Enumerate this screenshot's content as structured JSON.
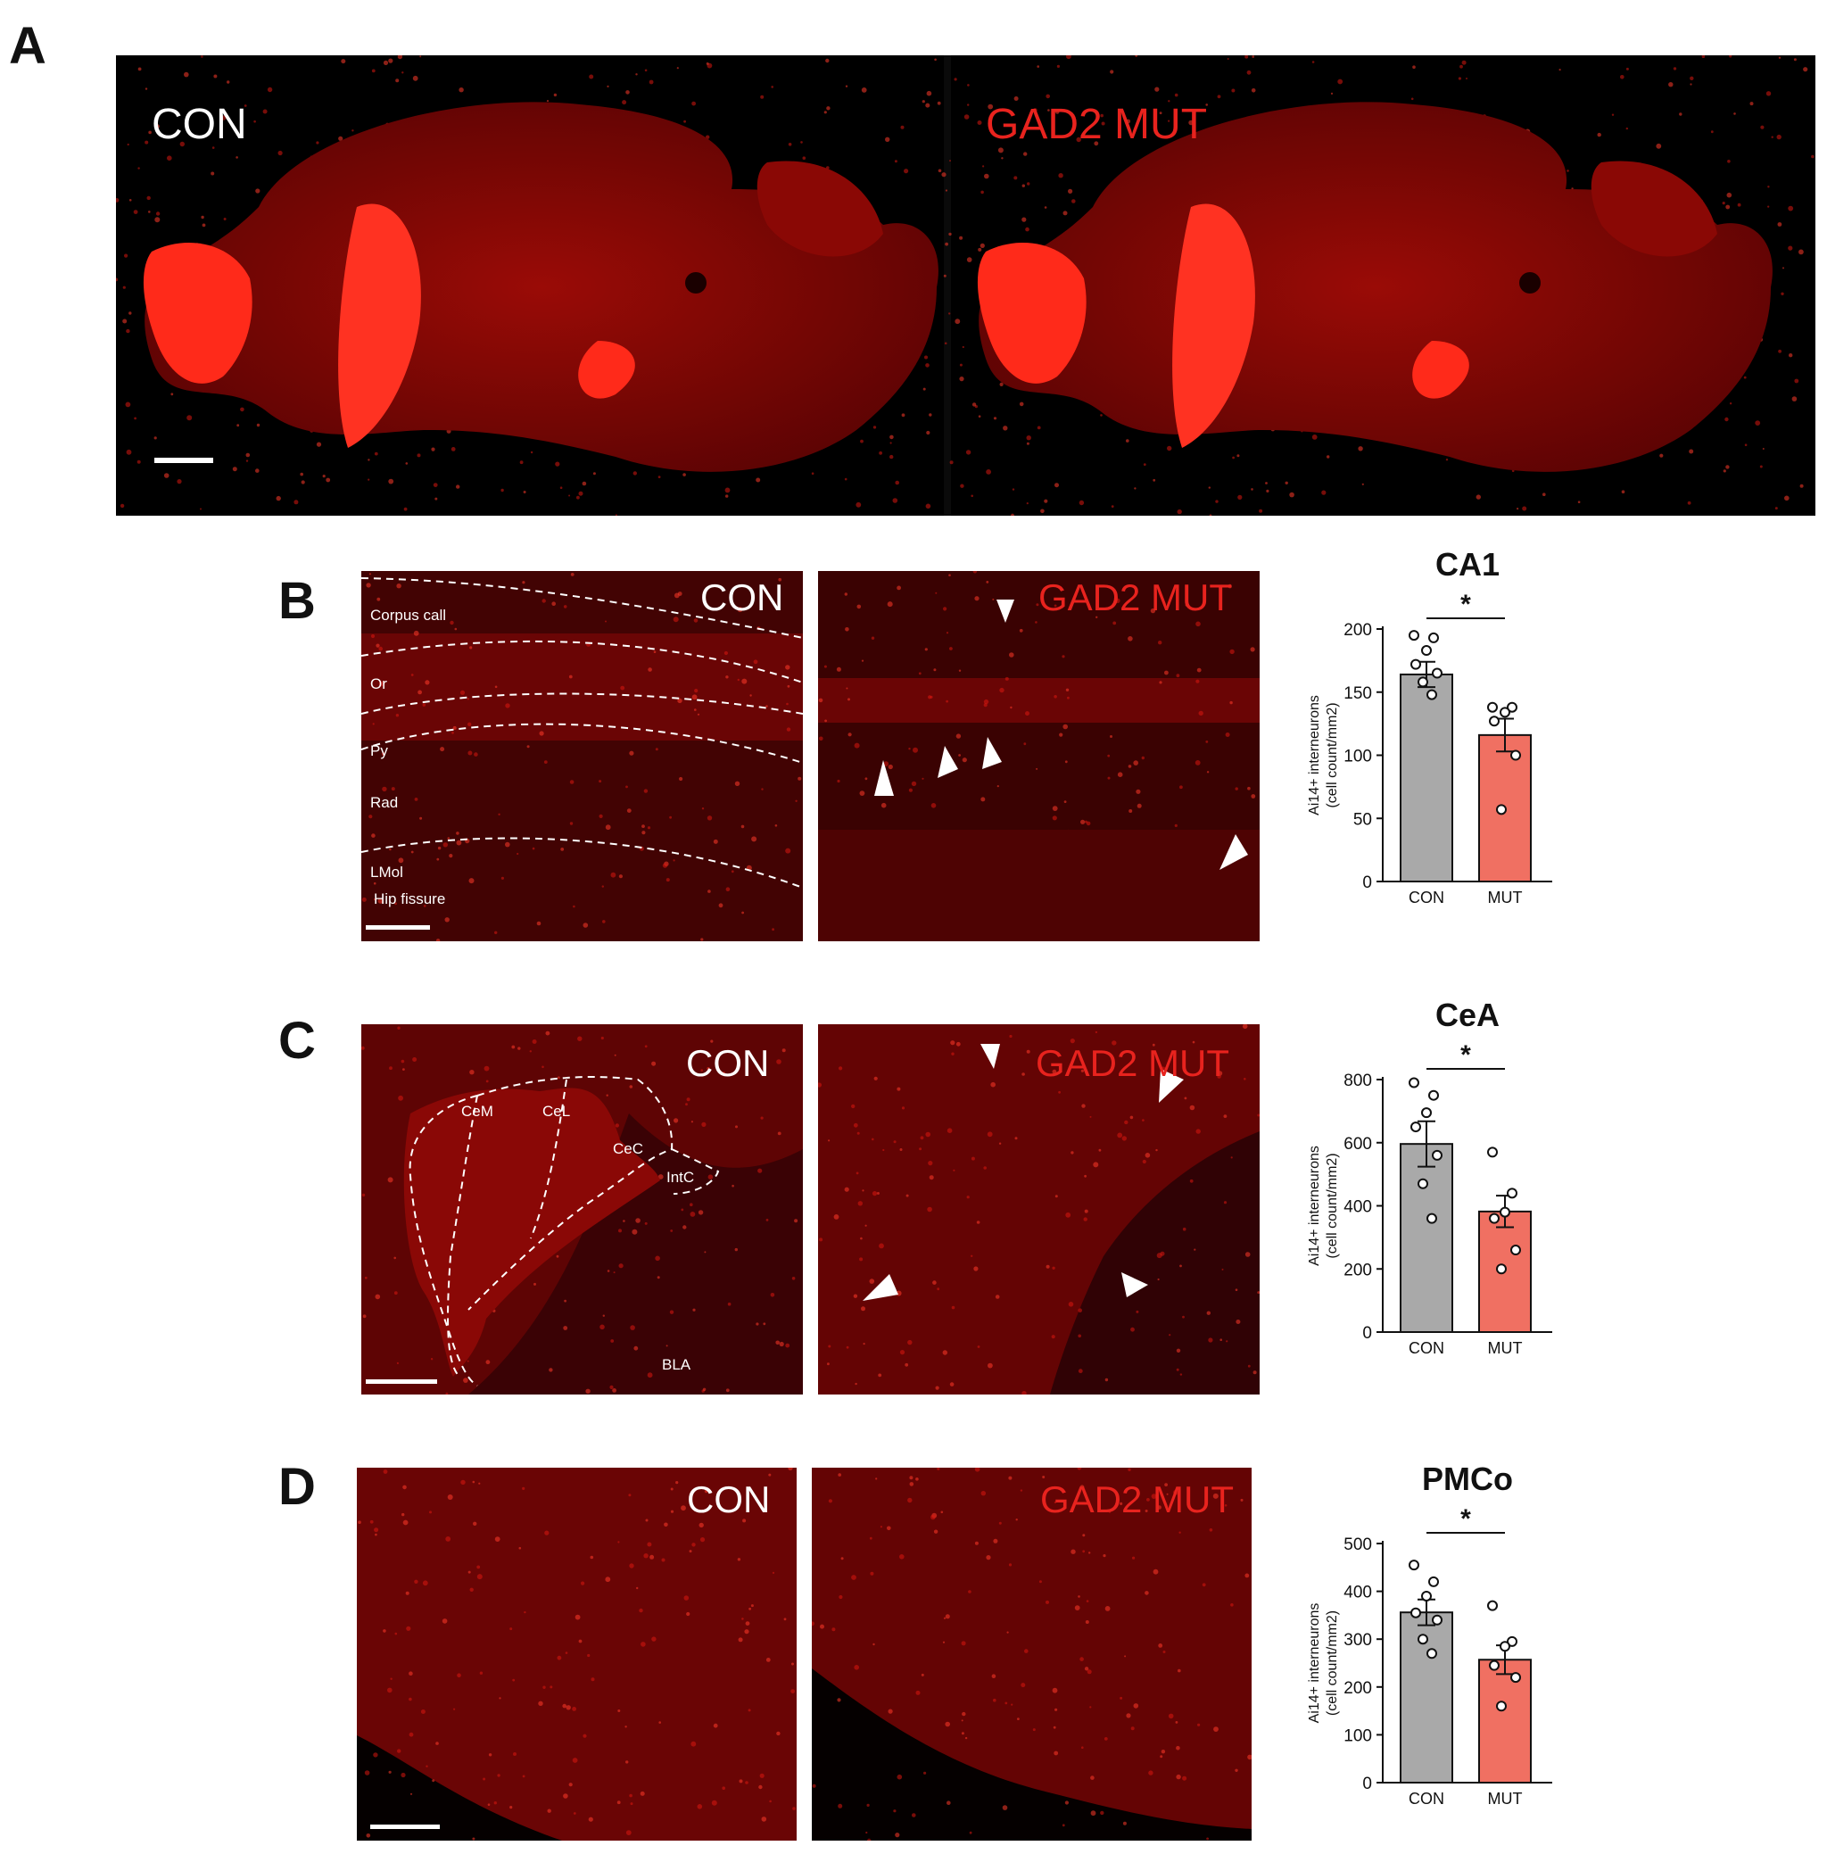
{
  "panels": {
    "A": {
      "letter": "A",
      "con_label": "CON",
      "mut_label": "GAD2 MUT"
    },
    "B": {
      "letter": "B",
      "con_label": "CON",
      "mut_label": "GAD2 MUT",
      "layers": [
        "Corpus call",
        "Or",
        "Py",
        "Rad",
        "LMol",
        "Hip fissure"
      ]
    },
    "C": {
      "letter": "C",
      "con_label": "CON",
      "mut_label": "GAD2 MUT",
      "regions": [
        "CeM",
        "CeL",
        "CeC",
        "IntC",
        "BLA"
      ]
    },
    "D": {
      "letter": "D",
      "con_label": "CON",
      "mut_label": "GAD2 MUT"
    }
  },
  "colors": {
    "con_bar": "#a9a9a9",
    "mut_bar": "#f07062",
    "mut_text": "#e8231e",
    "tissue": "#b00000"
  },
  "chart_data": [
    {
      "type": "bar",
      "title": "CA1",
      "categories": [
        "CON",
        "MUT"
      ],
      "values": [
        164,
        116
      ],
      "errors": [
        10,
        13
      ],
      "points": [
        [
          195,
          193,
          183,
          172,
          165,
          158,
          148
        ],
        [
          138,
          138,
          134,
          127,
          100,
          57
        ]
      ],
      "ylabel_line1": "Ai14+ interneurons",
      "ylabel_line2": "(cell count/mm2)",
      "ylim": [
        0,
        200
      ],
      "yticks": [
        0,
        50,
        100,
        150,
        200
      ],
      "significance": "*"
    },
    {
      "type": "bar",
      "title": "CeA",
      "categories": [
        "CON",
        "MUT"
      ],
      "values": [
        596,
        382
      ],
      "errors": [
        72,
        50
      ],
      "points": [
        [
          790,
          750,
          695,
          650,
          560,
          470,
          360
        ],
        [
          570,
          440,
          380,
          360,
          260,
          200
        ]
      ],
      "ylabel_line1": "Ai14+ interneurons",
      "ylabel_line2": "(cell count/mm2)",
      "ylim": [
        0,
        800
      ],
      "yticks": [
        0,
        200,
        400,
        600,
        800
      ],
      "significance": "*"
    },
    {
      "type": "bar",
      "title": "PMCo",
      "categories": [
        "CON",
        "MUT"
      ],
      "values": [
        356,
        257
      ],
      "errors": [
        27,
        30
      ],
      "points": [
        [
          455,
          420,
          390,
          355,
          340,
          300,
          270
        ],
        [
          370,
          295,
          285,
          245,
          220,
          160
        ]
      ],
      "ylabel_line1": "Ai14+ interneurons",
      "ylabel_line2": "(cell count/mm2)",
      "ylim": [
        0,
        500
      ],
      "yticks": [
        0,
        100,
        200,
        300,
        400,
        500
      ],
      "significance": "*"
    }
  ]
}
